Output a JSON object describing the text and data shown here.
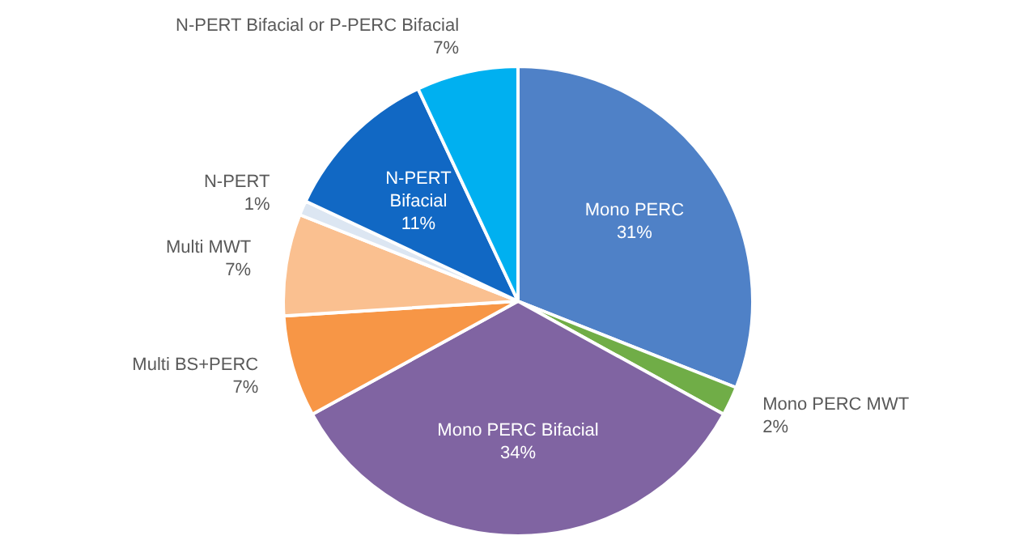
{
  "chart_data": {
    "type": "pie",
    "categories": [
      "Mono PERC",
      "Mono PERC MWT",
      "Mono PERC Bifacial",
      "Multi BS+PERC",
      "Multi MWT",
      "N-PERT",
      "N-PERT Bifacial",
      "N-PERT Bifacial or P-PERC Bifacial"
    ],
    "values": [
      31,
      2,
      34,
      7,
      7,
      1,
      11,
      7
    ],
    "colors": [
      "#4f81c7",
      "#70ad47",
      "#8064a2",
      "#f79646",
      "#fac090",
      "#dce6f2",
      "#1168c4",
      "#00b0f0"
    ],
    "value_labels": [
      "31%",
      "2%",
      "34%",
      "7%",
      "7%",
      "1%",
      "11%",
      "7%"
    ]
  }
}
